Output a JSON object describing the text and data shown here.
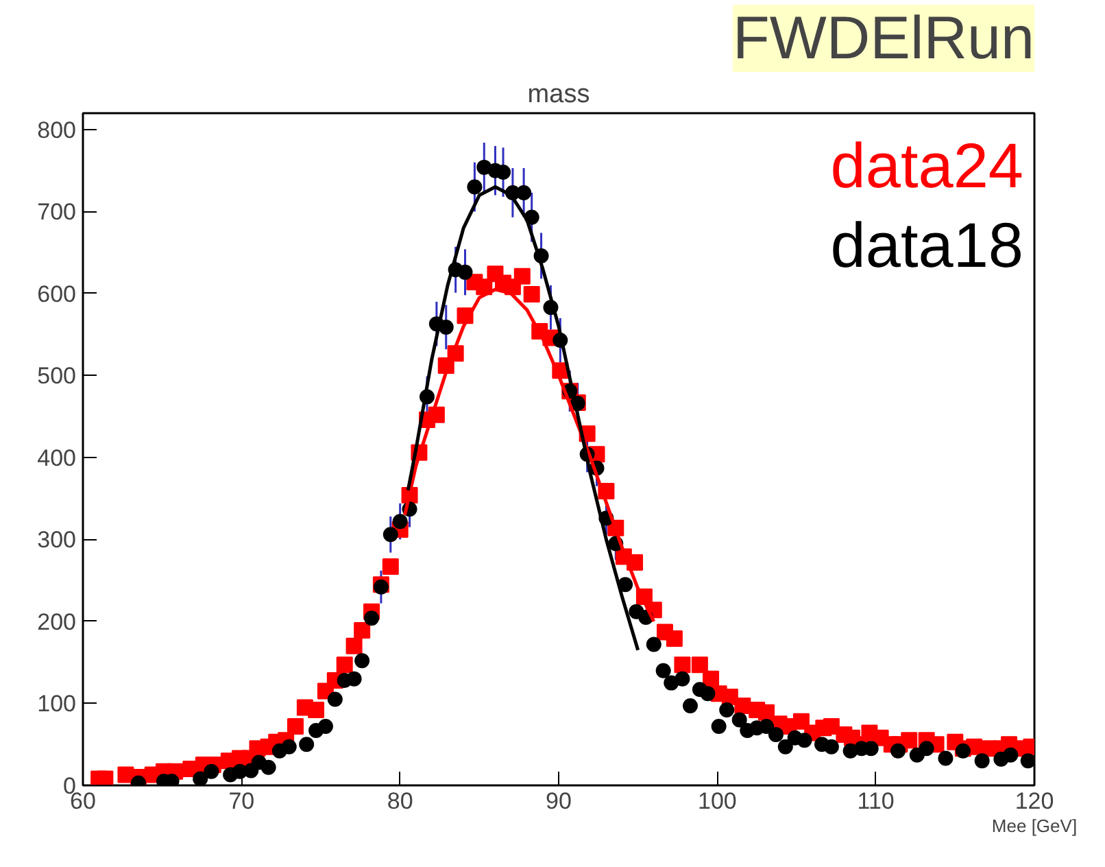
{
  "chart_data": {
    "type": "scatter",
    "title": "mass",
    "subtitle": "FWDElRun",
    "xlabel": "Mee [GeV]",
    "xlim": [
      60,
      120
    ],
    "ylim": [
      0,
      820
    ],
    "xticks": [
      60,
      70,
      80,
      90,
      100,
      110,
      120
    ],
    "yticks": [
      0,
      100,
      200,
      300,
      400,
      500,
      600,
      700,
      800
    ],
    "grid": false,
    "legend": "top right",
    "series": [
      {
        "name": "data24",
        "color": "#ff0000",
        "marker": "square",
        "x": [
          61.0,
          61.4,
          62.7,
          63.5,
          64.4,
          65.1,
          65.8,
          66.8,
          67.6,
          68.2,
          69.2,
          69.9,
          70.5,
          71.0,
          71.7,
          72.2,
          72.8,
          73.4,
          74.0,
          74.7,
          75.3,
          75.9,
          76.5,
          77.1,
          77.6,
          78.2,
          78.8,
          79.4,
          80.0,
          80.6,
          81.2,
          81.7,
          82.3,
          82.9,
          83.5,
          84.1,
          84.7,
          85.3,
          86.0,
          86.5,
          87.1,
          87.7,
          88.3,
          88.8,
          89.5,
          90.1,
          90.7,
          91.2,
          91.8,
          92.4,
          93.0,
          93.6,
          94.1,
          94.8,
          95.4,
          96.0,
          96.7,
          97.3,
          97.8,
          98.9,
          99.6,
          100.1,
          100.8,
          101.6,
          102.5,
          103.1,
          103.9,
          104.5,
          105.3,
          106.0,
          106.7,
          107.2,
          108.0,
          108.5,
          109.1,
          109.6,
          110.3,
          111.0,
          111.5,
          112.1,
          113.2,
          113.8,
          115.0,
          115.5,
          116.2,
          117.1,
          117.9,
          118.4,
          119.1,
          119.8
        ],
        "values": [
          8,
          8,
          13,
          10,
          13,
          17,
          17,
          20,
          25,
          25,
          30,
          33,
          33,
          45,
          47,
          53,
          55,
          72,
          95,
          92,
          115,
          128,
          147,
          170,
          189,
          212,
          245,
          267,
          312,
          354,
          406,
          446,
          452,
          512,
          527,
          573,
          614,
          608,
          624,
          613,
          608,
          621,
          599,
          554,
          546,
          506,
          481,
          467,
          429,
          404,
          359,
          314,
          279,
          272,
          230,
          214,
          187,
          179,
          147,
          147,
          130,
          112,
          108,
          97,
          92,
          89,
          75,
          72,
          78,
          64,
          70,
          72,
          62,
          58,
          50,
          64,
          58,
          50,
          50,
          55,
          55,
          50,
          53,
          45,
          47,
          45,
          45,
          50,
          45,
          47
        ]
      },
      {
        "name": "data18",
        "color": "#000000",
        "marker": "circle",
        "x": [
          63.5,
          65.1,
          65.6,
          67.4,
          68.1,
          69.3,
          69.9,
          70.6,
          71.1,
          71.7,
          72.4,
          73.0,
          74.1,
          74.7,
          75.3,
          75.9,
          76.5,
          77.1,
          77.6,
          78.2,
          78.8,
          79.4,
          80.0,
          80.6,
          81.7,
          82.3,
          82.9,
          83.5,
          84.1,
          84.7,
          85.3,
          86.0,
          86.5,
          87.1,
          87.8,
          88.3,
          88.9,
          89.5,
          90.1,
          90.7,
          91.2,
          91.8,
          92.4,
          93.0,
          93.6,
          94.2,
          94.9,
          95.5,
          96.0,
          96.6,
          97.1,
          97.8,
          98.3,
          98.9,
          99.4,
          100.1,
          100.6,
          101.4,
          101.9,
          102.5,
          103.1,
          103.7,
          104.3,
          104.9,
          105.5,
          106.6,
          107.2,
          108.4,
          109.1,
          109.7,
          111.4,
          112.6,
          113.2,
          114.4,
          115.5,
          116.7,
          117.9,
          118.5,
          119.6
        ],
        "values": [
          3,
          5,
          5,
          8,
          17,
          13,
          17,
          18,
          28,
          22,
          42,
          47,
          50,
          67,
          72,
          105,
          128,
          130,
          152,
          204,
          242,
          306,
          322,
          337,
          474,
          563,
          559,
          629,
          626,
          730,
          754,
          750,
          748,
          723,
          723,
          693,
          646,
          583,
          543,
          481,
          466,
          404,
          387,
          326,
          295,
          245,
          212,
          205,
          172,
          140,
          125,
          130,
          97,
          117,
          112,
          72,
          92,
          80,
          67,
          70,
          72,
          62,
          47,
          58,
          55,
          50,
          47,
          42,
          45,
          45,
          42,
          37,
          45,
          33,
          42,
          30,
          32,
          37,
          30
        ],
        "errors": [
          null,
          null,
          null,
          null,
          null,
          null,
          null,
          null,
          null,
          null,
          null,
          null,
          null,
          null,
          null,
          null,
          null,
          null,
          null,
          null,
          20,
          22,
          22,
          22,
          25,
          27,
          27,
          28,
          28,
          30,
          30,
          30,
          30,
          30,
          30,
          30,
          28,
          27,
          27,
          25,
          25,
          22,
          22,
          20,
          20,
          null,
          null,
          null,
          null,
          null,
          null,
          null,
          null,
          null,
          null,
          null,
          null,
          null,
          null,
          null,
          null,
          null,
          null,
          null,
          null,
          null,
          null,
          null,
          null,
          null,
          null,
          null,
          null,
          null,
          null,
          null,
          null,
          null,
          null
        ]
      },
      {
        "type": "line",
        "color": "#ff0000",
        "x": [
          80.3,
          81,
          82,
          83,
          84,
          85,
          86,
          87,
          88,
          89,
          90,
          91,
          92,
          93,
          94,
          95,
          96
        ],
        "values": [
          330,
          390,
          450,
          510,
          560,
          595,
          605,
          600,
          580,
          545,
          500,
          450,
          400,
          345,
          290,
          240,
          200
        ]
      },
      {
        "type": "line",
        "color": "#000000",
        "x": [
          80.5,
          81,
          82,
          83,
          84,
          85,
          86,
          87,
          88,
          89,
          90,
          91,
          92,
          93,
          94,
          95
        ],
        "values": [
          360,
          410,
          520,
          610,
          680,
          720,
          730,
          720,
          690,
          630,
          560,
          470,
          380,
          300,
          230,
          165
        ]
      }
    ]
  }
}
